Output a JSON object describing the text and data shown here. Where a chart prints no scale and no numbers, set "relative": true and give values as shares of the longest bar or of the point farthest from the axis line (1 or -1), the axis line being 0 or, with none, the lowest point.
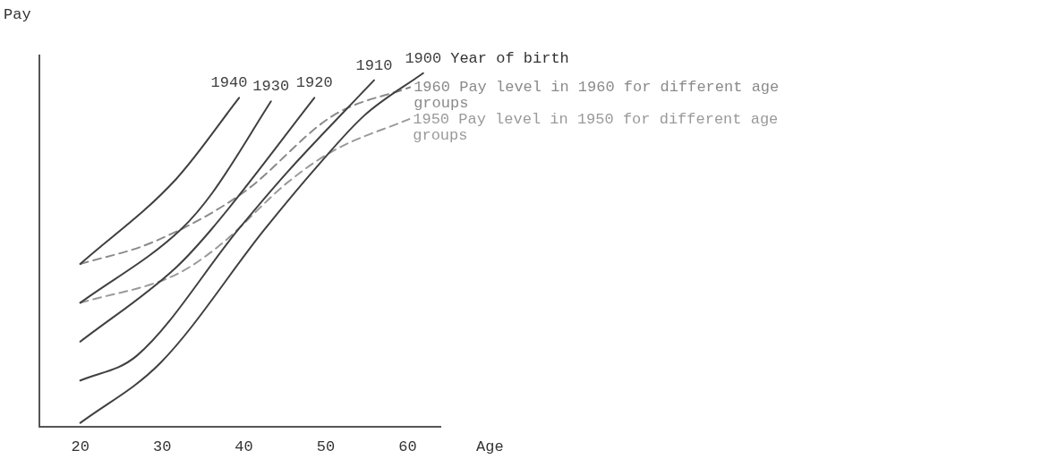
{
  "chart_data": {
    "type": "line",
    "ylabel": "Pay",
    "xlabel": "Age",
    "relative": true,
    "legend": false,
    "grid": false,
    "marker": "none",
    "xlim": [
      15,
      64
    ],
    "xticks": [
      20,
      30,
      40,
      50,
      60
    ],
    "annotations": [
      "Year of birth"
    ],
    "series": [
      {
        "name": "1940",
        "color": "#404040",
        "line_style": "solid",
        "x": [
          20,
          31.7,
          39.4
        ],
        "values": [
          0.46,
          0.7,
          0.93
        ]
      },
      {
        "name": "1930",
        "color": "#404040",
        "line_style": "solid",
        "x": [
          20,
          32.4,
          36.1,
          43.3
        ],
        "values": [
          0.35,
          0.56,
          0.66,
          0.92
        ]
      },
      {
        "name": "1920",
        "color": "#404040",
        "line_style": "solid",
        "x": [
          20,
          31.7,
          36.1,
          48.6
        ],
        "values": [
          0.24,
          0.45,
          0.56,
          0.93
        ]
      },
      {
        "name": "1910",
        "color": "#404040",
        "line_style": "solid",
        "x": [
          20,
          26.9,
          39.4,
          45.3,
          55.9
        ],
        "values": [
          0.13,
          0.2,
          0.56,
          0.72,
          0.98
        ]
      },
      {
        "name": "1900",
        "color": "#404040",
        "line_style": "solid",
        "x": [
          20,
          29.8,
          42.6,
          49.1,
          54.7,
          61.9
        ],
        "values": [
          0.01,
          0.18,
          0.56,
          0.74,
          0.88,
          1.0
        ]
      },
      {
        "name": "1960 Pay level in 1960 for different age groups",
        "color": "#8a8a8a",
        "line_style": "dashed",
        "x": [
          20,
          28.7,
          39.8,
          50.9,
          60.3
        ],
        "values": [
          0.46,
          0.52,
          0.66,
          0.88,
          0.96
        ]
      },
      {
        "name": "1950 Pay level in 1950 for different age groups",
        "color": "#9a9a9a",
        "line_style": "dashed",
        "x": [
          20,
          31.7,
          36.9,
          45.3,
          50.9,
          60.2
        ],
        "values": [
          0.35,
          0.43,
          0.51,
          0.69,
          0.78,
          0.87
        ]
      }
    ]
  }
}
